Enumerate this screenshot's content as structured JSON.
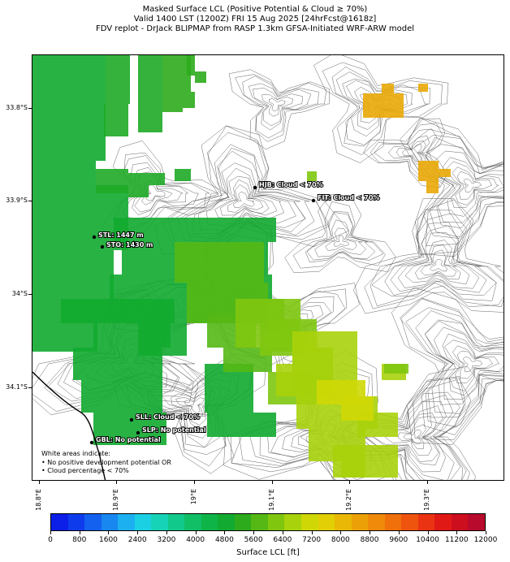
{
  "titles": {
    "line1": "Masked Surface LCL (Positive Potential & Cloud ≥ 70%)",
    "line2": "Valid 1400 LST (1200Z) FRI 15 Aug 2025 [24hrFcst@1618z]",
    "line3": "FDV replot - DrJack BLIPMAP from RASP 1.3km GFSA-Initiated WRF-ARW model"
  },
  "axes": {
    "lat_labels": [
      "33.8°S",
      "33.9°S",
      "34°S",
      "34.1°S"
    ],
    "lon_labels": [
      "18.8°E",
      "18.9°E",
      "19°E",
      "19.1°E",
      "19.2°E",
      "19.3°E"
    ]
  },
  "sites": [
    {
      "name": "HJB",
      "label": "HJB: Cloud < 70%"
    },
    {
      "name": "FIT",
      "label": "FIT: Cloud < 70%"
    },
    {
      "name": "STL",
      "label": "STL: 1447 m"
    },
    {
      "name": "STO",
      "label": "STO: 1430 m"
    },
    {
      "name": "SLL",
      "label": "SLL: Cloud < 70%"
    },
    {
      "name": "SLP",
      "label": "SLP: No potential"
    },
    {
      "name": "GBL",
      "label": "GBL: No potential"
    }
  ],
  "note": {
    "line1": "White areas indicate:",
    "line2": "• No positive development potential OR",
    "line3": "• Cloud percentage < 70%"
  },
  "colorbar": {
    "title": "Surface LCL [ft]",
    "ticks": [
      "0",
      "800",
      "1600",
      "2400",
      "3200",
      "4000",
      "4800",
      "5600",
      "6400",
      "7200",
      "8000",
      "8800",
      "9600",
      "10400",
      "11200",
      "12000"
    ],
    "colors": [
      "#0b1fe8",
      "#0e3cec",
      "#1461ef",
      "#1887f0",
      "#1cb0f0",
      "#1cd0e4",
      "#16d2b6",
      "#12c98c",
      "#10bf66",
      "#0fb448",
      "#12aa30",
      "#2eab1c",
      "#55b815",
      "#80c60f",
      "#a8d20b",
      "#cfd806",
      "#e2cf05",
      "#e9b806",
      "#eca008",
      "#ef8a0a",
      "#f0700c",
      "#ef540f",
      "#ea3313",
      "#e01917",
      "#cc0e1f",
      "#b80a2c"
    ]
  }
}
